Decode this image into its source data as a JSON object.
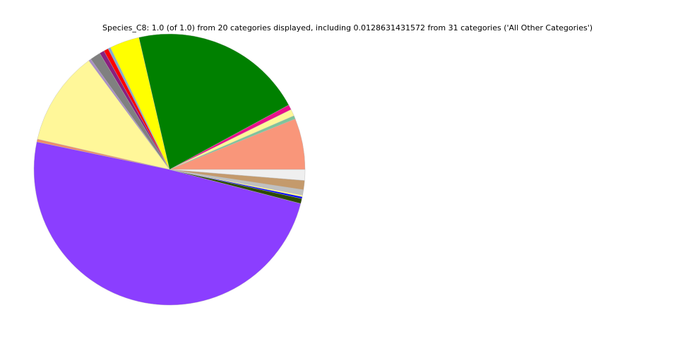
{
  "chart_data": {
    "type": "pie",
    "title": "Species_C8: 1.0 (of 1.0) from 20 categories displayed, including 0.0128631431572 from 31 categories ('All Other Categories')",
    "start_angle_deg": 0,
    "direction": "counterclockwise",
    "slices": [
      {
        "value": 0.061,
        "color": "#f9967a"
      },
      {
        "value": 0.004,
        "color": "#7fc49a"
      },
      {
        "value": 0.008,
        "color": "#fff799"
      },
      {
        "value": 0.006,
        "color": "#ea0f8c"
      },
      {
        "value": 0.2075,
        "color": "#008000"
      },
      {
        "value": 0.0356,
        "color": "#ffff00"
      },
      {
        "value": 0.003,
        "color": "#80aad5"
      },
      {
        "value": 0.0056,
        "color": "#ff0000"
      },
      {
        "value": 0.0056,
        "color": "#8b1f7f"
      },
      {
        "value": 0.0125,
        "color": "#808080"
      },
      {
        "value": 0.003,
        "color": "#a98ec4"
      },
      {
        "value": 0.1125,
        "color": "#fff799"
      },
      {
        "value": 0.0033,
        "color": "#ef8c6a"
      },
      {
        "value": 0.4925,
        "color": "#8b3eff"
      },
      {
        "value": 0.006,
        "color": "#2d4a00"
      },
      {
        "value": 0.0022,
        "color": "#0000ff"
      },
      {
        "value": 0.002,
        "color": "#fff799"
      },
      {
        "value": 0.0064,
        "color": "#c0c0c0"
      },
      {
        "value": 0.011,
        "color": "#c49a6c"
      },
      {
        "value": 0.0129,
        "color": "#efefef"
      }
    ]
  }
}
